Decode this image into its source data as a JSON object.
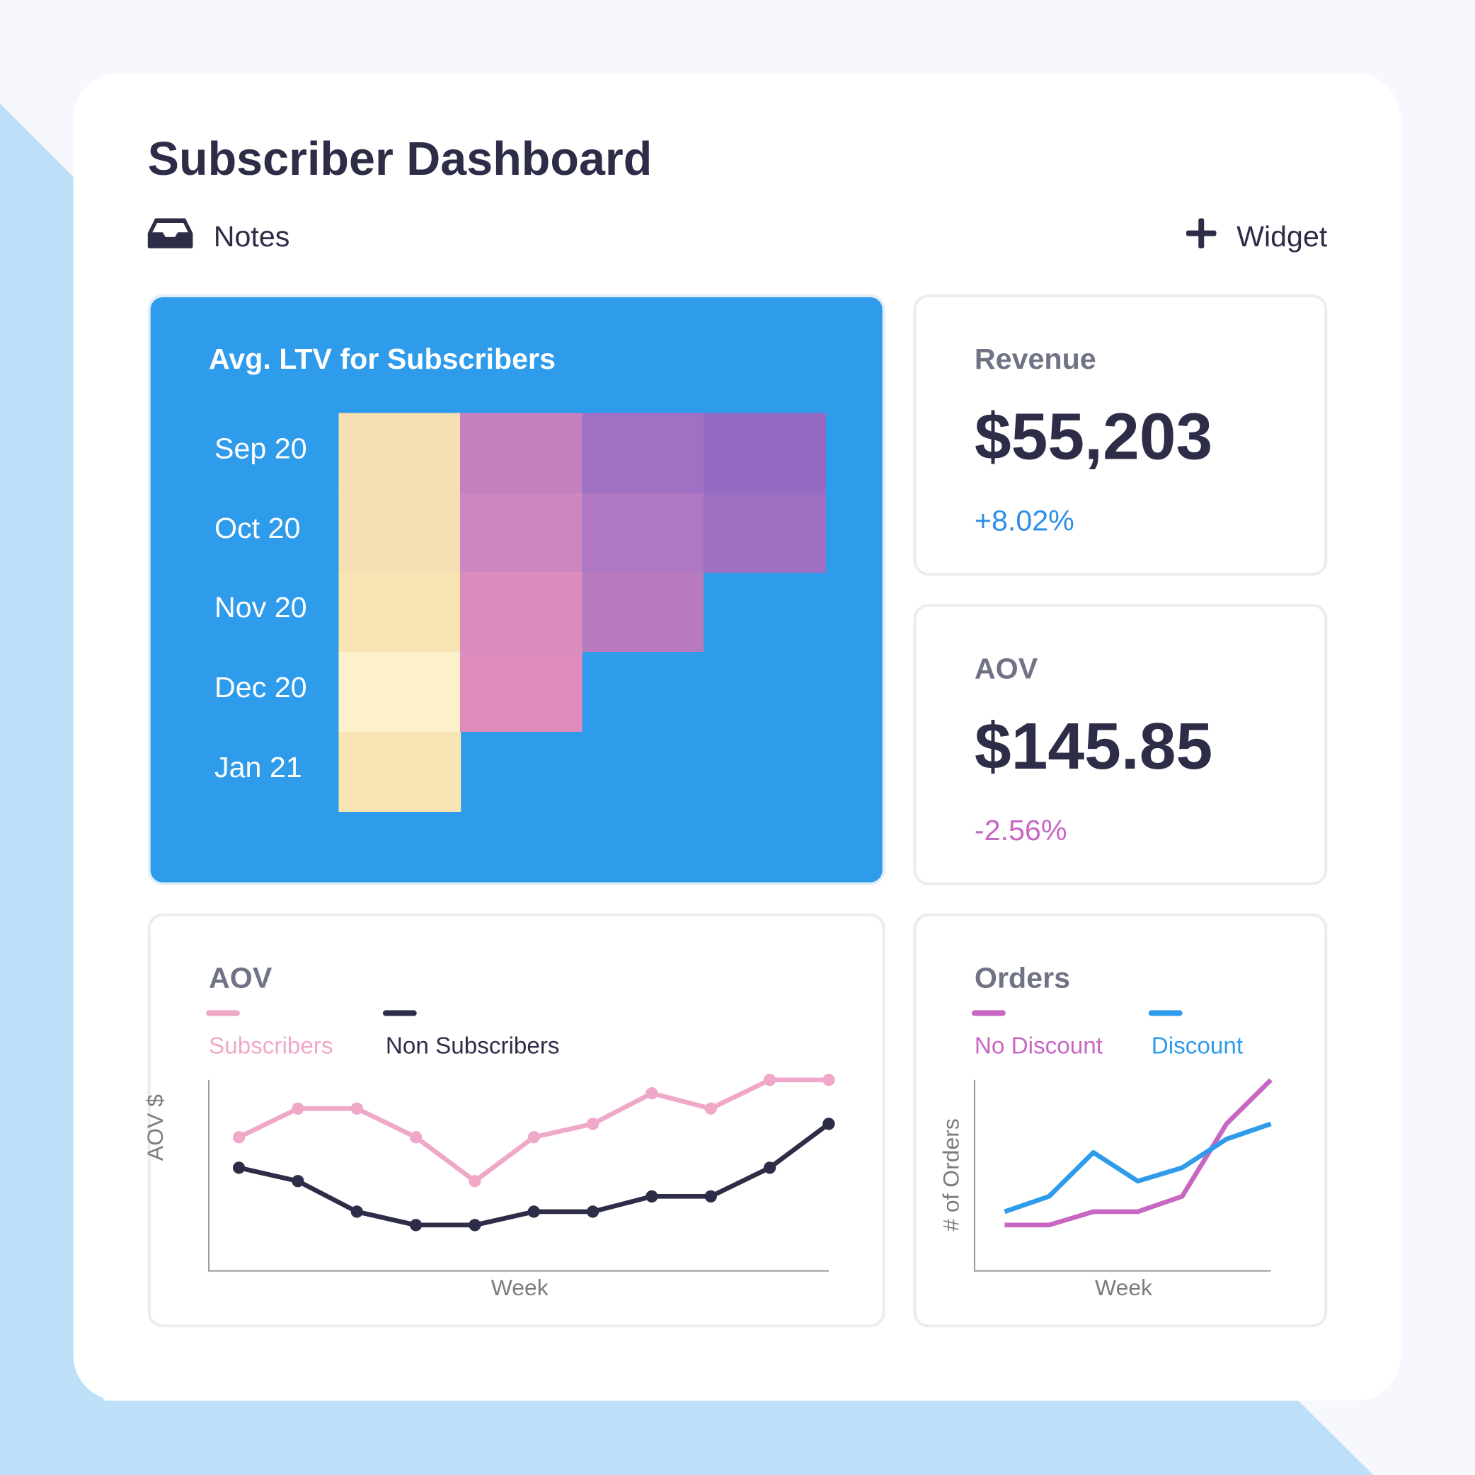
{
  "header": {
    "title": "Subscriber Dashboard",
    "notes_label": "Notes",
    "notes_icon": "inbox-icon",
    "widget_label": "Widget",
    "widget_icon": "plus-icon"
  },
  "colors": {
    "accent_blue": "#2e9beb",
    "dark": "#2d2d48",
    "pink": "#f0a8c8",
    "magenta": "#c866c4",
    "positive": "#2e8fe6",
    "negative": "#c866c4"
  },
  "ltv": {
    "title": "Avg. LTV for Subscribers",
    "rows": [
      {
        "label": "Sep 20",
        "cells": [
          "#f7dfb4",
          "#c480bf",
          "#a070c5",
          "#956ac2"
        ]
      },
      {
        "label": "Oct 20",
        "cells": [
          "#f7dfb4",
          "#cd86c0",
          "#b078c2",
          "#9f6fc4"
        ]
      },
      {
        "label": "Nov 20",
        "cells": [
          "#f9e4b4",
          "#db8cbc",
          "#b87bbf"
        ]
      },
      {
        "label": "Dec 20",
        "cells": [
          "#fdf1cc",
          "#de8cbc"
        ]
      },
      {
        "label": "Jan 21",
        "cells": [
          "#f9e4b4"
        ]
      }
    ]
  },
  "revenue": {
    "label": "Revenue",
    "value": "$55,203",
    "change": "+8.02%"
  },
  "aov_kpi": {
    "label": "AOV",
    "value": "$145.85",
    "change": "-2.56%"
  },
  "chart_data": [
    {
      "type": "line",
      "title": "AOV",
      "xlabel": "Week",
      "ylabel": "AOV $",
      "ylim": [
        0,
        100
      ],
      "grid": false,
      "legend": "top-left",
      "x": [
        1,
        2,
        3,
        4,
        5,
        6,
        7,
        8,
        9,
        10,
        11
      ],
      "series": [
        {
          "name": "Subscribers",
          "color": "#f0a8c8",
          "markers": true,
          "values": [
            70,
            85,
            85,
            70,
            47,
            70,
            77,
            93,
            85,
            100,
            100
          ]
        },
        {
          "name": "Non Subscribers",
          "color": "#2d2d48",
          "markers": true,
          "values": [
            54,
            47,
            31,
            24,
            24,
            31,
            31,
            39,
            39,
            54,
            77
          ]
        }
      ]
    },
    {
      "type": "line",
      "title": "Orders",
      "xlabel": "Week",
      "ylabel": "# of Orders",
      "ylim": [
        0,
        100
      ],
      "grid": false,
      "legend": "top-left",
      "x": [
        1,
        2,
        3,
        4,
        5,
        6,
        7
      ],
      "series": [
        {
          "name": "No Discount",
          "color": "#c866c4",
          "markers": false,
          "values": [
            24,
            24,
            31,
            31,
            39,
            77,
            100
          ]
        },
        {
          "name": "Discount",
          "color": "#2e9beb",
          "markers": false,
          "values": [
            31,
            39,
            62,
            47,
            54,
            69,
            77
          ]
        }
      ]
    }
  ]
}
